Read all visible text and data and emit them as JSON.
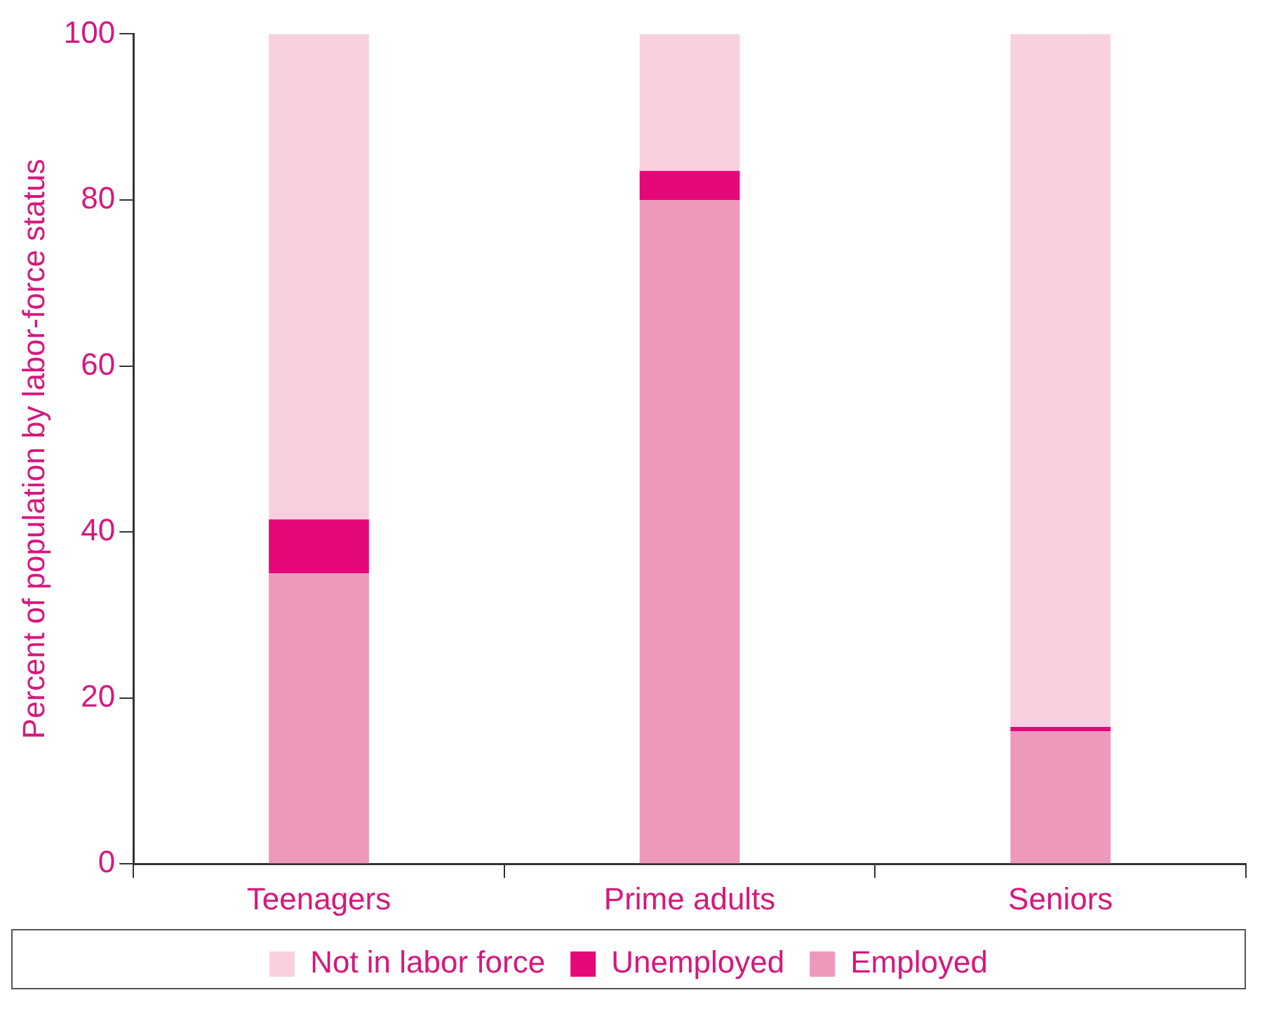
{
  "chart_data": {
    "type": "bar",
    "stacked": true,
    "ylabel": "Percent of population by labor-force status",
    "categories": [
      "Teenagers",
      "Prime adults",
      "Seniors"
    ],
    "ylim": [
      0,
      100
    ],
    "yticks": [
      0,
      20,
      40,
      60,
      80,
      100
    ],
    "grid": false,
    "legend": "bottom",
    "series": [
      {
        "name": "Employed",
        "color": "#ee98bc",
        "values": [
          35,
          80,
          16
        ]
      },
      {
        "name": "Unemployed",
        "color": "#e5087a",
        "values": [
          6.5,
          3.5,
          0.5
        ]
      },
      {
        "name": "Not in labor force",
        "color": "#f9d0e0",
        "values": [
          58.5,
          16.5,
          83.5
        ]
      }
    ]
  }
}
